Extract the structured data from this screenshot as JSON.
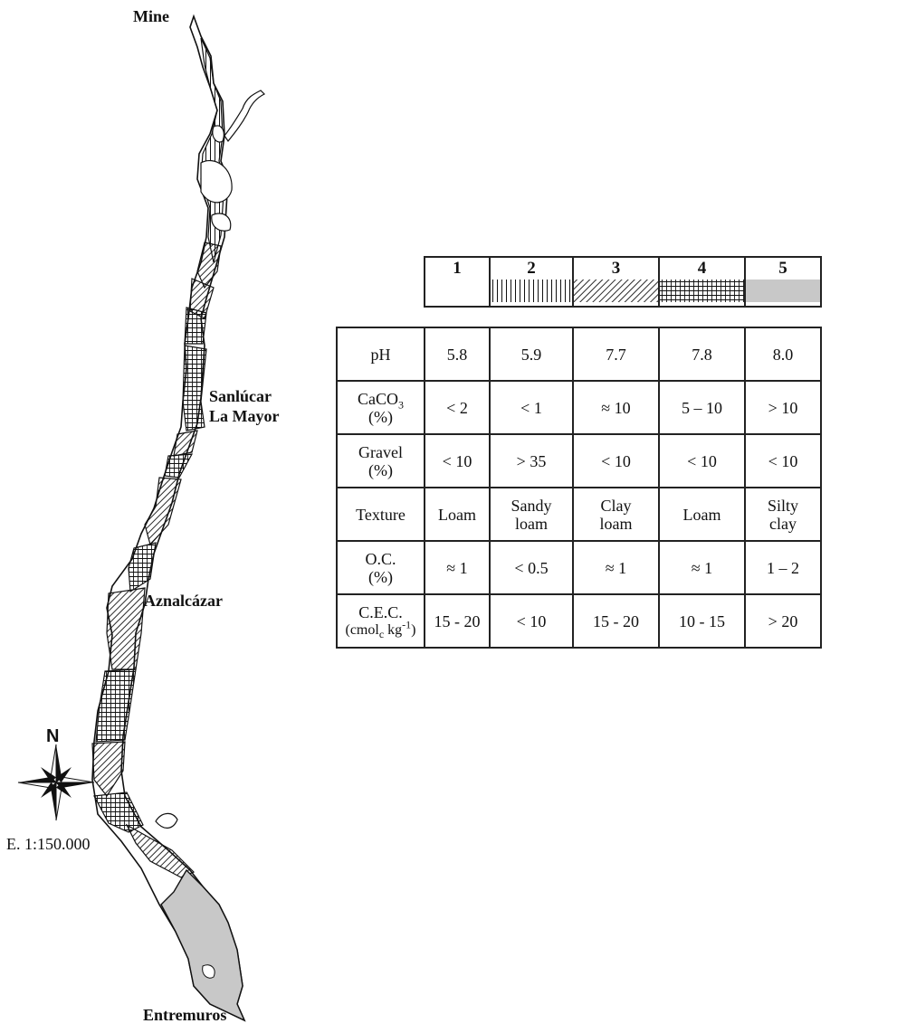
{
  "map": {
    "places": {
      "mine": "Mine",
      "sanlucar_line1": "Sanlúcar",
      "sanlucar_line2": "La Mayor",
      "aznalcazar": "Aznalcázar",
      "entremuros": "Entremuros"
    },
    "north_label": "N",
    "scale": "E. 1:150.000"
  },
  "legend_table": {
    "classes": [
      "1",
      "2",
      "3",
      "4",
      "5"
    ],
    "patterns": [
      "blank",
      "vertical-lines",
      "diagonal-lines",
      "crosshatch",
      "solid-gray"
    ],
    "rows": [
      {
        "label": "pH",
        "unit": "",
        "values": [
          "5.8",
          "5.9",
          "7.7",
          "7.8",
          "8.0"
        ]
      },
      {
        "label": "CaCO",
        "label_sub": "3",
        "unit": "(%)",
        "values": [
          "< 2",
          "< 1",
          "≈ 10",
          "5 – 10",
          "> 10"
        ]
      },
      {
        "label": "Gravel",
        "unit": "(%)",
        "values": [
          "< 10",
          "> 35",
          "< 10",
          "< 10",
          "< 10"
        ]
      },
      {
        "label": "Texture",
        "unit": "",
        "values": [
          "Loam",
          "Sandy loam",
          "Clay loam",
          "Loam",
          "Silty clay"
        ]
      },
      {
        "label": "O.C.",
        "unit": "(%)",
        "values": [
          "≈ 1",
          "< 0.5",
          "≈ 1",
          "≈ 1",
          "1 – 2"
        ]
      },
      {
        "label": "C.E.C.",
        "unit_prefix": "(cmol",
        "unit_sub": "c",
        "unit_mid": " kg",
        "unit_sup": "-1",
        "unit_suffix": ")",
        "values": [
          "15 - 20",
          "< 10",
          "15 - 20",
          "10 - 15",
          "> 20"
        ]
      }
    ]
  },
  "colors": {
    "ink": "#111111",
    "gray_fill": "#c8c8c8"
  }
}
